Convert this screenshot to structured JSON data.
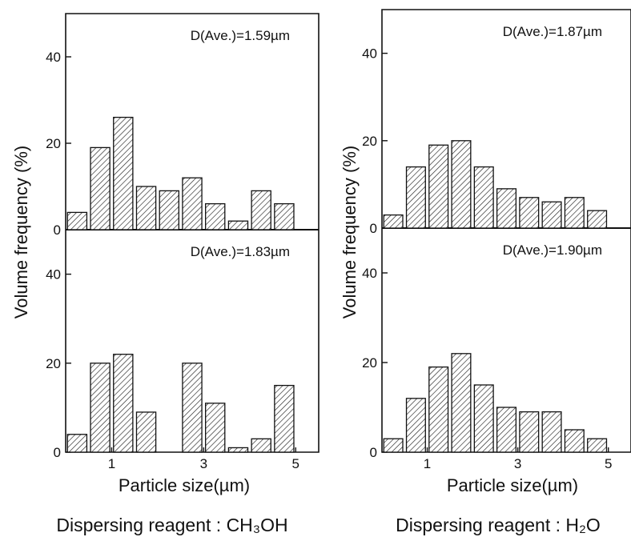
{
  "ylabel": "Volume  frequency (%)",
  "xlabel": "Particle size(µm)",
  "captions": {
    "left": "Dispersing reagent : CH₃OH",
    "right": "Dispersing reagent : H₂O"
  },
  "chart_data": [
    {
      "type": "bar",
      "title": "D(Ave.)=1.59µm",
      "group": "CH3OH",
      "x": [
        0.25,
        0.75,
        1.25,
        1.75,
        2.25,
        2.75,
        3.25,
        3.75,
        4.25,
        4.75
      ],
      "values": [
        4,
        19,
        26,
        10,
        9,
        12,
        6,
        2,
        9,
        6
      ],
      "xlim": [
        0,
        5.5
      ],
      "ylim": [
        0,
        50
      ],
      "yticks": [
        0,
        20,
        40
      ],
      "xticks": [
        1,
        3,
        5
      ]
    },
    {
      "type": "bar",
      "title": "D(Ave.)=1.83µm",
      "group": "CH3OH",
      "x": [
        0.25,
        0.75,
        1.25,
        1.75,
        2.25,
        2.75,
        3.25,
        3.75,
        4.25,
        4.75
      ],
      "values": [
        4,
        20,
        22,
        9,
        0,
        20,
        11,
        1,
        3,
        15
      ],
      "xlim": [
        0,
        5.5
      ],
      "ylim": [
        0,
        50
      ],
      "yticks": [
        0,
        20,
        40
      ],
      "xticks": [
        1,
        3,
        5
      ]
    },
    {
      "type": "bar",
      "title": "D(Ave.)=1.87µm",
      "group": "H2O",
      "x": [
        0.25,
        0.75,
        1.25,
        1.75,
        2.25,
        2.75,
        3.25,
        3.75,
        4.25,
        4.75
      ],
      "values": [
        3,
        14,
        19,
        20,
        14,
        9,
        7,
        6,
        7,
        4
      ],
      "xlim": [
        0,
        5.5
      ],
      "ylim": [
        0,
        50
      ],
      "yticks": [
        0,
        20,
        40
      ],
      "xticks": [
        1,
        3,
        5
      ]
    },
    {
      "type": "bar",
      "title": "D(Ave.)=1.90µm",
      "group": "H2O",
      "x": [
        0.25,
        0.75,
        1.25,
        1.75,
        2.25,
        2.75,
        3.25,
        3.75,
        4.25,
        4.75
      ],
      "values": [
        3,
        12,
        19,
        22,
        15,
        10,
        9,
        9,
        5,
        3
      ],
      "xlim": [
        0,
        5.5
      ],
      "ylim": [
        0,
        50
      ],
      "yticks": [
        0,
        20,
        40
      ],
      "xticks": [
        1,
        3,
        5
      ]
    }
  ]
}
